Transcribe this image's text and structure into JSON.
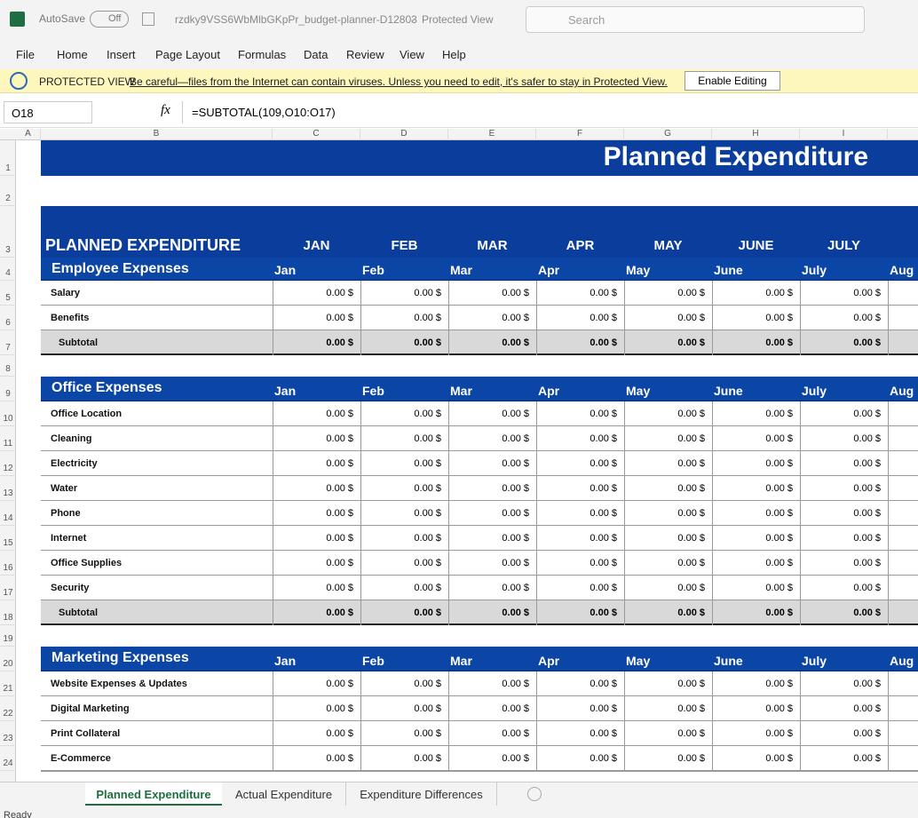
{
  "title_bar": {
    "autosave": "AutoSave",
    "toggle": "Off",
    "filename": "rzdky9VSS6WbMlbGKpPr_budget-planner-D12803",
    "separator": "-",
    "mode": "Protected View",
    "search": "Search"
  },
  "menu": [
    "File",
    "Home",
    "Insert",
    "Page Layout",
    "Formulas",
    "Data",
    "Review",
    "View",
    "Help"
  ],
  "protected_view": {
    "label": "PROTECTED VIEW",
    "message": "Be careful—files from the Internet can contain viruses. Unless you need to edit, it's safer to stay in Protected View.",
    "button": "Enable Editing"
  },
  "formula_bar": {
    "cell": "O18",
    "fx": "fx",
    "formula": "=SUBTOTAL(109,O10:O17)"
  },
  "grid": {
    "columns": [
      "A",
      "B",
      "C",
      "D",
      "E",
      "F",
      "G",
      "H",
      "I"
    ],
    "rows": [
      "1",
      "2",
      "3",
      "4",
      "5",
      "6",
      "7",
      "8",
      "9",
      "10",
      "11",
      "12",
      "13",
      "14",
      "15",
      "16",
      "17",
      "18",
      "19",
      "20",
      "21",
      "22",
      "23",
      "24"
    ]
  },
  "sheet": {
    "title": "Planned Expenditure",
    "header": "PLANNED EXPENDITURE",
    "months": [
      "JAN",
      "FEB",
      "MAR",
      "APR",
      "MAY",
      "JUNE",
      "JULY"
    ],
    "sections": [
      {
        "name": "Employee Expenses",
        "months": [
          "Jan",
          "Feb",
          "Mar",
          "Apr",
          "May",
          "June",
          "July",
          "Aug"
        ],
        "rows": [
          {
            "label": "Salary",
            "values": [
              "0.00 $",
              "0.00 $",
              "0.00 $",
              "0.00 $",
              "0.00 $",
              "0.00 $",
              "0.00 $"
            ]
          },
          {
            "label": "Benefits",
            "values": [
              "0.00 $",
              "0.00 $",
              "0.00 $",
              "0.00 $",
              "0.00 $",
              "0.00 $",
              "0.00 $"
            ]
          }
        ],
        "subtotal": {
          "label": "Subtotal",
          "values": [
            "0.00 $",
            "0.00 $",
            "0.00 $",
            "0.00 $",
            "0.00 $",
            "0.00 $",
            "0.00 $"
          ]
        }
      },
      {
        "name": "Office Expenses",
        "months": [
          "Jan",
          "Feb",
          "Mar",
          "Apr",
          "May",
          "June",
          "July",
          "Aug"
        ],
        "rows": [
          {
            "label": "Office Location",
            "values": [
              "0.00 $",
              "0.00 $",
              "0.00 $",
              "0.00 $",
              "0.00 $",
              "0.00 $",
              "0.00 $"
            ]
          },
          {
            "label": "Cleaning",
            "values": [
              "0.00 $",
              "0.00 $",
              "0.00 $",
              "0.00 $",
              "0.00 $",
              "0.00 $",
              "0.00 $"
            ]
          },
          {
            "label": "Electricity",
            "values": [
              "0.00 $",
              "0.00 $",
              "0.00 $",
              "0.00 $",
              "0.00 $",
              "0.00 $",
              "0.00 $"
            ]
          },
          {
            "label": "Water",
            "values": [
              "0.00 $",
              "0.00 $",
              "0.00 $",
              "0.00 $",
              "0.00 $",
              "0.00 $",
              "0.00 $"
            ]
          },
          {
            "label": "Phone",
            "values": [
              "0.00 $",
              "0.00 $",
              "0.00 $",
              "0.00 $",
              "0.00 $",
              "0.00 $",
              "0.00 $"
            ]
          },
          {
            "label": "Internet",
            "values": [
              "0.00 $",
              "0.00 $",
              "0.00 $",
              "0.00 $",
              "0.00 $",
              "0.00 $",
              "0.00 $"
            ]
          },
          {
            "label": "Office Supplies",
            "values": [
              "0.00 $",
              "0.00 $",
              "0.00 $",
              "0.00 $",
              "0.00 $",
              "0.00 $",
              "0.00 $"
            ]
          },
          {
            "label": "Security",
            "values": [
              "0.00 $",
              "0.00 $",
              "0.00 $",
              "0.00 $",
              "0.00 $",
              "0.00 $",
              "0.00 $"
            ]
          }
        ],
        "subtotal": {
          "label": "Subtotal",
          "values": [
            "0.00 $",
            "0.00 $",
            "0.00 $",
            "0.00 $",
            "0.00 $",
            "0.00 $",
            "0.00 $"
          ]
        }
      },
      {
        "name": "Marketing Expenses",
        "months": [
          "Jan",
          "Feb",
          "Mar",
          "Apr",
          "May",
          "June",
          "July",
          "Aug"
        ],
        "rows": [
          {
            "label": "Website Expenses & Updates",
            "values": [
              "0.00 $",
              "0.00 $",
              "0.00 $",
              "0.00 $",
              "0.00 $",
              "0.00 $",
              "0.00 $"
            ]
          },
          {
            "label": "Digital Marketing",
            "values": [
              "0.00 $",
              "0.00 $",
              "0.00 $",
              "0.00 $",
              "0.00 $",
              "0.00 $",
              "0.00 $"
            ]
          },
          {
            "label": "Print Collateral",
            "values": [
              "0.00 $",
              "0.00 $",
              "0.00 $",
              "0.00 $",
              "0.00 $",
              "0.00 $",
              "0.00 $"
            ]
          },
          {
            "label": "E-Commerce",
            "values": [
              "0.00 $",
              "0.00 $",
              "0.00 $",
              "0.00 $",
              "0.00 $",
              "0.00 $",
              "0.00 $"
            ]
          }
        ]
      }
    ]
  },
  "tabs": [
    "Planned Expenditure",
    "Actual Expenditure",
    "Expenditure Differences"
  ],
  "status": "Ready"
}
